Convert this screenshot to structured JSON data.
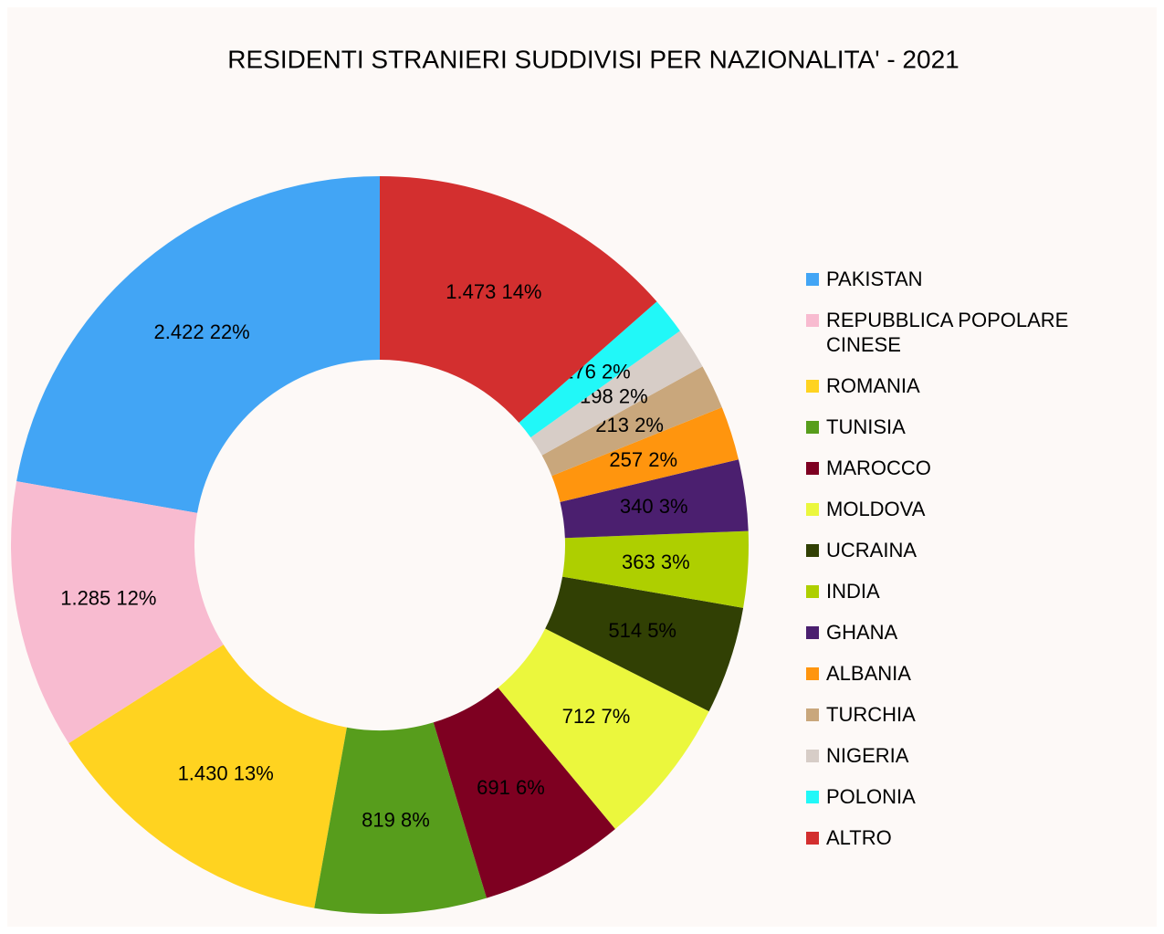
{
  "chart_data": {
    "type": "donut",
    "title": "RESIDENTI STRANIERI SUDDIVISI PER NAZIONALITA' - 2021",
    "categories": [
      "PAKISTAN",
      "REPUBBLICA POPOLARE CINESE",
      "ROMANIA",
      "TUNISIA",
      "MAROCCO",
      "MOLDOVA",
      "UCRAINA",
      "INDIA",
      "GHANA",
      "ALBANIA",
      "TURCHIA",
      "NIGERIA",
      "POLONIA",
      "ALTRO"
    ],
    "values": [
      2422,
      1285,
      1430,
      819,
      691,
      712,
      514,
      363,
      340,
      257,
      213,
      198,
      176,
      1473
    ],
    "value_labels": [
      "2.422",
      "1.285",
      "1.430",
      "819",
      "691",
      "712",
      "514",
      "363",
      "340",
      "257",
      "213",
      "198",
      "176",
      "1.473"
    ],
    "percent_labels": [
      "22%",
      "12%",
      "13%",
      "8%",
      "6%",
      "7%",
      "5%",
      "3%",
      "3%",
      "2%",
      "2%",
      "2%",
      "2%",
      "14%"
    ],
    "colors": [
      "#42a5f5",
      "#f8bbd0",
      "#ffd320",
      "#579d1c",
      "#7e0021",
      "#ebf73d",
      "#314004",
      "#aecf00",
      "#4b1f6f",
      "#ff950e",
      "#c9a77c",
      "#d7cdc7",
      "#21f8f8",
      "#d32f2f"
    ],
    "legend": "right"
  }
}
